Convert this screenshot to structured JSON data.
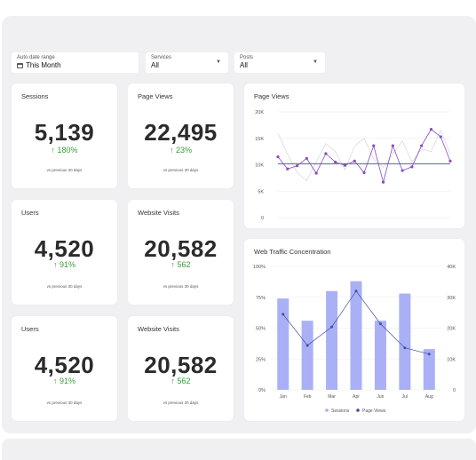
{
  "filters": [
    {
      "label": "Auto date range",
      "value": "This Month",
      "icon": "calendar-icon"
    },
    {
      "label": "Services",
      "value": "All",
      "icon": "chevron-down-icon"
    },
    {
      "label": "Posts",
      "value": "All",
      "icon": "chevron-down-icon"
    }
  ],
  "kpis": [
    {
      "title": "Sessions",
      "value": "5,139",
      "delta": "↑ 180%",
      "note": "vs previous 30 days"
    },
    {
      "title": "Page Views",
      "value": "22,495",
      "delta": "↑ 23%",
      "note": "vs previous 30 days"
    },
    {
      "title": "Users",
      "value": "4,520",
      "delta": "↑ 91%",
      "note": "vs previous 30 days"
    },
    {
      "title": "Website Visits",
      "value": "20,582",
      "delta": "↑ 562",
      "note": "vs previous 30 days"
    },
    {
      "title": "Users",
      "value": "4,520",
      "delta": "↑ 91%",
      "note": "vs previous 30 days"
    },
    {
      "title": "Website Visits",
      "value": "20,582",
      "delta": "↑ 562",
      "note": "vs previous 30 days"
    }
  ],
  "colors": {
    "accent": "#8a4dbb",
    "bar": "#aab0f5",
    "line2": "#3f4fa8",
    "positive": "#3a9a3a"
  },
  "chart_data": [
    {
      "type": "line",
      "title": "Page Views",
      "ylim": [
        0,
        20000
      ],
      "yticks": [
        "0",
        "5K",
        "10K",
        "15K",
        "20K"
      ],
      "series": [
        {
          "values": [
            11500,
            9200,
            9800,
            11200,
            8400,
            12100,
            10500,
            9900,
            10700,
            8500,
            13600,
            6700,
            13600,
            8900,
            9600,
            13600,
            16700,
            15300,
            10700
          ]
        },
        {
          "values": [
            10200,
            10200,
            10200,
            10200,
            10200,
            10200,
            10200,
            10200,
            10200,
            10200,
            10200,
            10200,
            10200,
            10200,
            10200,
            10200,
            10200,
            10200,
            10200
          ]
        },
        {
          "values": [
            16000,
            12000,
            8500,
            7000,
            10500,
            14000,
            12500,
            9000,
            13500,
            15000,
            11000,
            9500,
            12000,
            14500,
            10500,
            13000,
            12500,
            16500,
            12000
          ]
        }
      ]
    },
    {
      "type": "bar",
      "title": "Web Traffic Concentration",
      "categories": [
        "Jan",
        "Feb",
        "Mar",
        "Apr",
        "Jun",
        "Jul",
        "Aug"
      ],
      "ylim_left": [
        0,
        100
      ],
      "yticks_left": [
        "0%",
        "25%",
        "50%",
        "75%",
        "100%"
      ],
      "ylim_right": [
        0,
        40000
      ],
      "yticks_right": [
        "0",
        "10K",
        "20K",
        "30K",
        "40K"
      ],
      "series": [
        {
          "name": "Sessions",
          "values": [
            74,
            56,
            80,
            88,
            56,
            78,
            33
          ]
        },
        {
          "name": "Page Views",
          "values": [
            24500,
            14400,
            20400,
            32000,
            21400,
            13600,
            11600
          ]
        }
      ],
      "legend": "bottom"
    }
  ]
}
